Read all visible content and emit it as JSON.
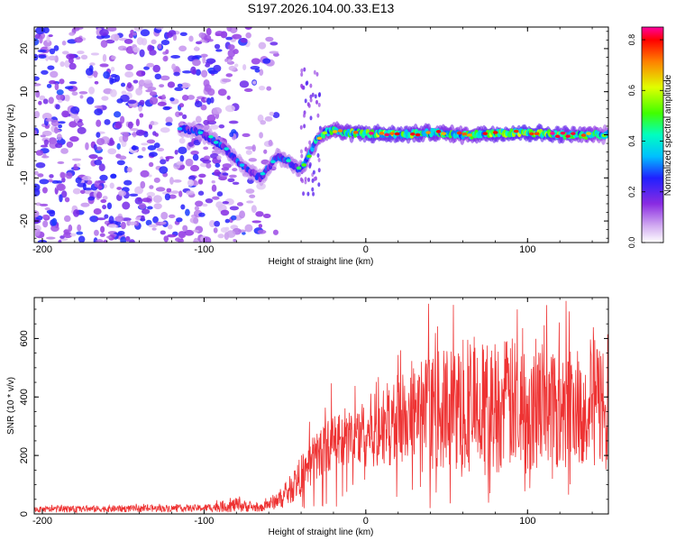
{
  "chart_data": [
    {
      "type": "heatmap",
      "title": "S197.2026.104.00.33.E13",
      "xlabel": "Height of straight line (km)",
      "ylabel": "Frequency (Hz)",
      "xlim": [
        -205,
        150
      ],
      "ylim": [
        -25,
        25
      ],
      "xticks": [
        -200,
        -100,
        0,
        100
      ],
      "xtick_labels": [
        "-200",
        "-100",
        "0",
        "100"
      ],
      "yticks": [
        -20,
        -10,
        0,
        10,
        20
      ],
      "ytick_labels": [
        "-20",
        "-10",
        "0",
        "10",
        "20"
      ],
      "colorbar": {
        "label": "Normalized spectral amplitude",
        "range": [
          0,
          0.85
        ],
        "ticks": [
          0,
          0.2,
          0.4,
          0.6,
          0.8
        ],
        "tick_labels": [
          "0.0",
          "0.2",
          "0.4",
          "0.6",
          "0.8"
        ],
        "colormap": [
          "#ffffff",
          "#d0a8f0",
          "#8a2be2",
          "#2020ff",
          "#00c0ff",
          "#00ffc0",
          "#40ff00",
          "#e0ff00",
          "#ff8000",
          "#ff0000",
          "#ff00a0"
        ]
      },
      "ridge": {
        "description": "frequency ridge vs height",
        "x": [
          -115,
          -105,
          -95,
          -85,
          -75,
          -65,
          -55,
          -48,
          -42,
          -38,
          -34,
          -30,
          -25,
          -20,
          -10,
          0,
          20,
          40,
          60,
          80,
          100,
          120,
          140,
          150
        ],
        "y": [
          1.5,
          1.0,
          -1.0,
          -4.0,
          -7.5,
          -10.0,
          -5.0,
          -6.0,
          -8.0,
          -7.0,
          -4.0,
          -1.0,
          0.5,
          1.0,
          0.5,
          0.3,
          0.0,
          0.5,
          0.0,
          0.3,
          0.5,
          0.0,
          0.0,
          0.0
        ],
        "amplitude": [
          0.35,
          0.4,
          0.45,
          0.45,
          0.4,
          0.4,
          0.45,
          0.45,
          0.5,
          0.5,
          0.55,
          0.6,
          0.65,
          0.7,
          0.75,
          0.8,
          0.8,
          0.75,
          0.7,
          0.8,
          0.85,
          0.8,
          0.7,
          0.5
        ]
      },
      "noise_region": {
        "x_range": [
          -205,
          -65
        ],
        "amplitude": [
          0.05,
          0.2
        ]
      }
    },
    {
      "type": "line",
      "title": "",
      "xlabel": "Height of straight line (km)",
      "ylabel": "SNR (10 * v/v)",
      "xlim": [
        -205,
        150
      ],
      "ylim": [
        0,
        740
      ],
      "xticks": [
        -200,
        -100,
        0,
        100
      ],
      "xtick_labels": [
        "-200",
        "-100",
        "0",
        "100"
      ],
      "yticks": [
        0,
        200,
        400,
        600
      ],
      "ytick_labels": [
        "0",
        "200",
        "400",
        "600"
      ],
      "color": "#ee3333",
      "envelope": {
        "x": [
          -205,
          -150,
          -100,
          -80,
          -65,
          -50,
          -40,
          -30,
          -20,
          -15,
          -10,
          0,
          20,
          40,
          60,
          80,
          100,
          120,
          150
        ],
        "mean": [
          15,
          18,
          20,
          30,
          20,
          60,
          130,
          200,
          250,
          240,
          260,
          280,
          320,
          350,
          360,
          370,
          380,
          380,
          380
        ],
        "spread": [
          10,
          12,
          12,
          25,
          12,
          40,
          70,
          90,
          90,
          90,
          100,
          120,
          160,
          200,
          220,
          230,
          230,
          220,
          220
        ],
        "max": [
          30,
          35,
          35,
          70,
          40,
          120,
          250,
          380,
          480,
          350,
          420,
          500,
          650,
          740,
          740,
          740,
          740,
          740,
          740
        ]
      }
    }
  ]
}
